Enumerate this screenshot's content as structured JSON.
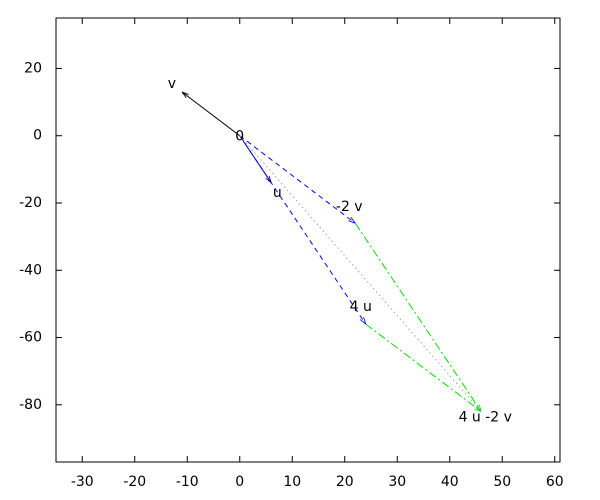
{
  "chart_data": {
    "type": "vector",
    "xlim": [
      -35,
      61
    ],
    "ylim": [
      -97,
      35
    ],
    "xticks": [
      -30,
      -20,
      -10,
      0,
      10,
      20,
      30,
      40,
      50,
      60
    ],
    "yticks": [
      -80,
      -60,
      -40,
      -20,
      0,
      20
    ],
    "annotations": [
      {
        "text": "0",
        "x": 0,
        "y": 0
      }
    ],
    "vectors": [
      {
        "name": "v",
        "x": [
          0,
          -11
        ],
        "y": [
          0,
          13
        ],
        "color": "#000000",
        "dash": "solid",
        "head": true
      },
      {
        "name": "u",
        "x": [
          0,
          6
        ],
        "y": [
          0,
          -14
        ],
        "color": "#000080",
        "dash": "solid",
        "head": true
      },
      {
        "name": "-2 v",
        "x": [
          0,
          22
        ],
        "y": [
          0,
          -26
        ],
        "color": "#0000ff",
        "dash": "dashed",
        "head": true
      },
      {
        "name": "4 u",
        "x": [
          0,
          24
        ],
        "y": [
          0,
          -56
        ],
        "color": "#0000ff",
        "dash": "dashed",
        "head": true
      },
      {
        "x": [
          22,
          46
        ],
        "y": [
          -26,
          -82
        ],
        "color": "#00e000",
        "dash": "dashdot",
        "head": true
      },
      {
        "name": "4 u -2 v",
        "x": [
          24,
          46
        ],
        "y": [
          -56,
          -82
        ],
        "color": "#00e000",
        "dash": "dashdot",
        "head": true
      },
      {
        "x": [
          0,
          46
        ],
        "y": [
          0,
          -82
        ],
        "color": "#a0a0a0",
        "dash": "dotted",
        "head": false
      }
    ]
  }
}
